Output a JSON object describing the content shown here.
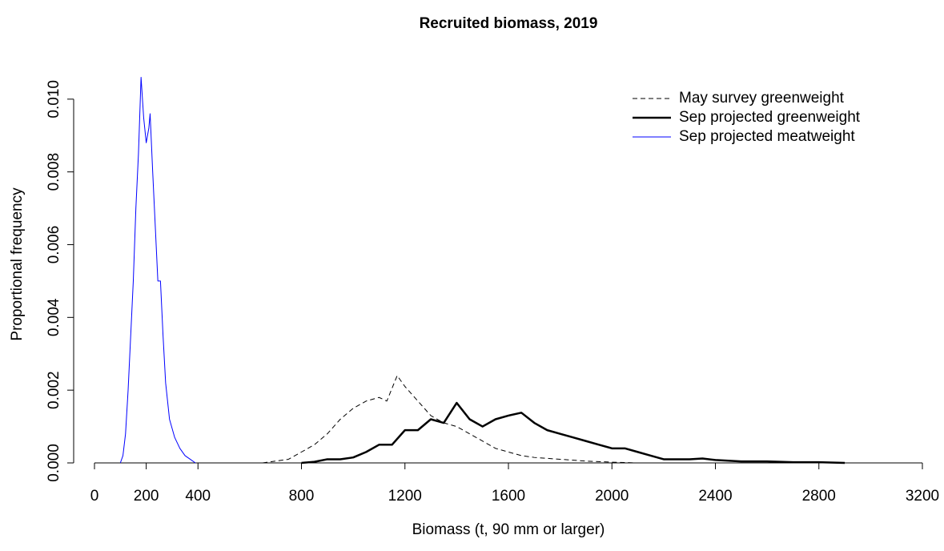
{
  "chart_data": {
    "type": "line",
    "title": "Recruited biomass, 2019",
    "x_label": "Biomass (t, 90 mm or larger)",
    "y_label": "Proportional frequency",
    "xlim": [
      0,
      3200
    ],
    "ylim": [
      0,
      0.0107
    ],
    "xticks": [
      0,
      200,
      400,
      800,
      1200,
      1600,
      2000,
      2400,
      2800,
      3200
    ],
    "yticks": [
      {
        "value": 0,
        "label": "0.000"
      },
      {
        "value": 0.002,
        "label": "0.002"
      },
      {
        "value": 0.004,
        "label": "0.004"
      },
      {
        "value": 0.006,
        "label": "0.006"
      },
      {
        "value": 0.008,
        "label": "0.008"
      },
      {
        "value": 0.01,
        "label": "0.010"
      }
    ],
    "legend": "topright",
    "series": [
      {
        "name": "May survey greenweight",
        "color": "#000000",
        "style": "dashed",
        "width": 1,
        "x": [
          650,
          700,
          750,
          800,
          850,
          900,
          950,
          1000,
          1050,
          1100,
          1130,
          1170,
          1200,
          1250,
          1300,
          1350,
          1400,
          1450,
          1500,
          1550,
          1600,
          1650,
          1700,
          1800,
          1900,
          2000,
          2100
        ],
        "values": [
          0,
          5e-05,
          0.0001,
          0.0003,
          0.0005,
          0.0008,
          0.0012,
          0.0015,
          0.0017,
          0.0018,
          0.0017,
          0.0024,
          0.0021,
          0.0017,
          0.0013,
          0.0011,
          0.001,
          0.0008,
          0.0006,
          0.0004,
          0.0003,
          0.0002,
          0.00015,
          0.0001,
          5e-05,
          2e-05,
          0
        ]
      },
      {
        "name": "Sep projected greenweight",
        "color": "#000000",
        "style": "solid",
        "width": 2.5,
        "x": [
          800,
          850,
          900,
          950,
          1000,
          1050,
          1100,
          1150,
          1200,
          1250,
          1300,
          1350,
          1400,
          1450,
          1500,
          1550,
          1600,
          1650,
          1700,
          1750,
          1800,
          1850,
          1900,
          1950,
          2000,
          2050,
          2100,
          2150,
          2200,
          2300,
          2350,
          2400,
          2500,
          2600,
          2700,
          2800,
          2900
        ],
        "values": [
          0,
          3e-05,
          0.0001,
          0.0001,
          0.00015,
          0.0003,
          0.0005,
          0.0005,
          0.0009,
          0.0009,
          0.0012,
          0.0011,
          0.00165,
          0.0012,
          0.001,
          0.0012,
          0.0013,
          0.00138,
          0.0011,
          0.0009,
          0.0008,
          0.0007,
          0.0006,
          0.0005,
          0.0004,
          0.0004,
          0.0003,
          0.0002,
          0.0001,
          0.0001,
          0.00012,
          8e-05,
          4e-05,
          4e-05,
          2e-05,
          2e-05,
          0
        ]
      },
      {
        "name": "Sep projected meatweight",
        "color": "#0000ff",
        "style": "solid",
        "width": 1,
        "x": [
          100,
          110,
          120,
          130,
          140,
          150,
          160,
          170,
          180,
          190,
          200,
          210,
          215,
          225,
          235,
          245,
          255,
          265,
          275,
          290,
          310,
          330,
          350,
          370,
          390
        ],
        "values": [
          0,
          0.0002,
          0.0008,
          0.002,
          0.0035,
          0.005,
          0.007,
          0.0085,
          0.0106,
          0.0095,
          0.0088,
          0.0092,
          0.0096,
          0.008,
          0.0065,
          0.005,
          0.005,
          0.0035,
          0.0022,
          0.0012,
          0.0007,
          0.0004,
          0.0002,
          0.0001,
          0
        ]
      }
    ]
  }
}
